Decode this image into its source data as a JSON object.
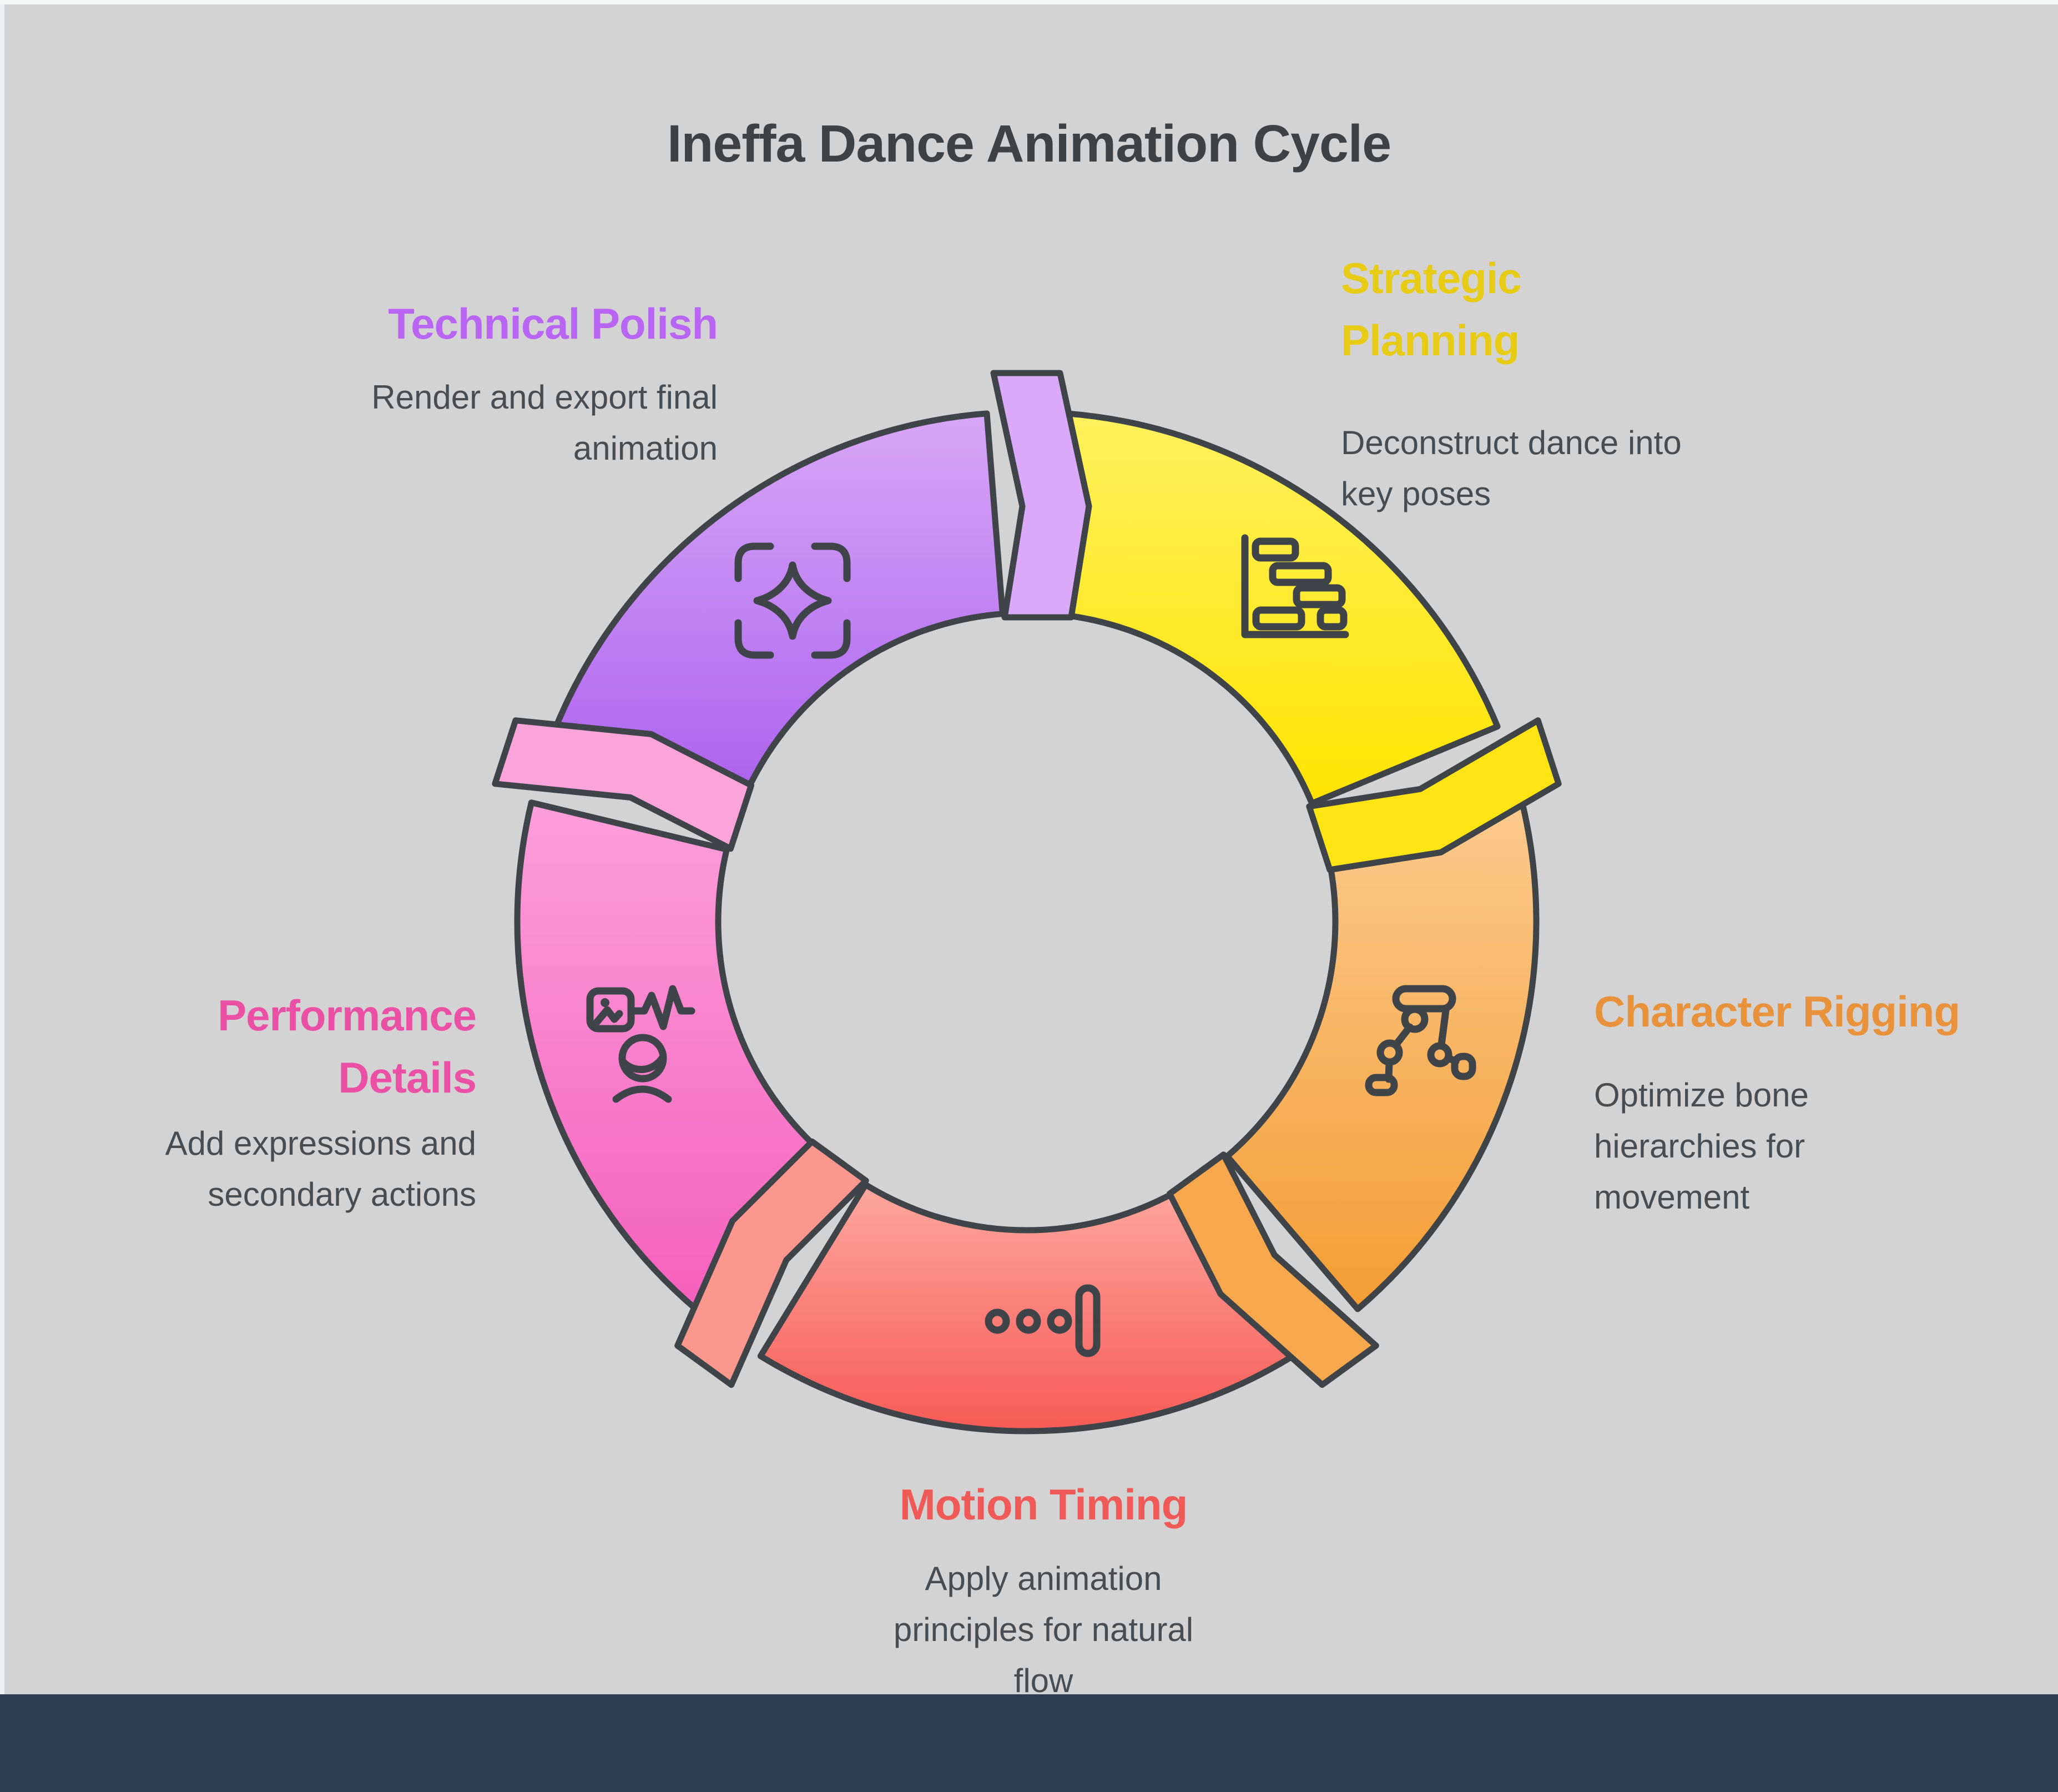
{
  "title": {
    "text": "Ineffa Dance Animation Cycle",
    "color": "#3f4245"
  },
  "background": {
    "page": "#d3d3d4",
    "top_strip": "#f6f7f7",
    "left_strip": "#eef0f1",
    "footer_bar": "#2c3e50"
  },
  "text_colors": {
    "description": "#4a4d50"
  },
  "diagram": {
    "type": "cycle",
    "direction": "clockwise",
    "outline_color": "#3f4449",
    "segments": [
      {
        "id": "strategic-planning",
        "heading": "Strategic Planning",
        "heading_lines": [
          "Strategic",
          "Planning"
        ],
        "heading_color": "#e7cb15",
        "desc_lines": [
          "Deconstruct dance into",
          "key poses"
        ],
        "description": "Deconstruct dance into key poses",
        "gradient": [
          "#fff15e",
          "#ffe400"
        ],
        "connector_color": "#ffe414",
        "icon": "gantt-chart-icon"
      },
      {
        "id": "character-rigging",
        "heading": "Character Rigging",
        "heading_lines": [
          "Character Rigging"
        ],
        "heading_color": "#e8933c",
        "desc_lines": [
          "Optimize bone",
          "hierarchies for",
          "movement"
        ],
        "description": "Optimize bone hierarchies for movement",
        "gradient": [
          "#fbca8e",
          "#f49d33"
        ],
        "connector_color": "#f7a84c",
        "icon": "rigged-legs-icon"
      },
      {
        "id": "motion-timing",
        "heading": "Motion Timing",
        "heading_lines": [
          "Motion Timing"
        ],
        "heading_color": "#ef5a56",
        "desc_lines": [
          "Apply animation",
          "principles for natural",
          "flow"
        ],
        "description": "Apply animation principles for natural flow",
        "gradient": [
          "#fda79e",
          "#f75b55"
        ],
        "connector_color": "#fb978d",
        "icon": "timeline-dots-icon"
      },
      {
        "id": "performance-details",
        "heading": "Performance Details",
        "heading_lines": [
          "Performance",
          "Details"
        ],
        "heading_color": "#ea51a4",
        "desc_lines": [
          "Add expressions and",
          "secondary actions"
        ],
        "description": "Add expressions and secondary actions",
        "gradient": [
          "#fc9fda",
          "#f560bd"
        ],
        "connector_color": "#fba4da",
        "icon": "image-pulse-person-icon"
      },
      {
        "id": "technical-polish",
        "heading": "Technical Polish",
        "heading_lines": [
          "Technical Polish"
        ],
        "heading_color": "#b765f2",
        "desc_lines": [
          "Render and export final",
          "animation"
        ],
        "description": "Render and export final animation",
        "gradient": [
          "#d7a7f6",
          "#ab60ee"
        ],
        "connector_color": "#daa9f8",
        "icon": "sparkle-frame-icon"
      }
    ]
  }
}
